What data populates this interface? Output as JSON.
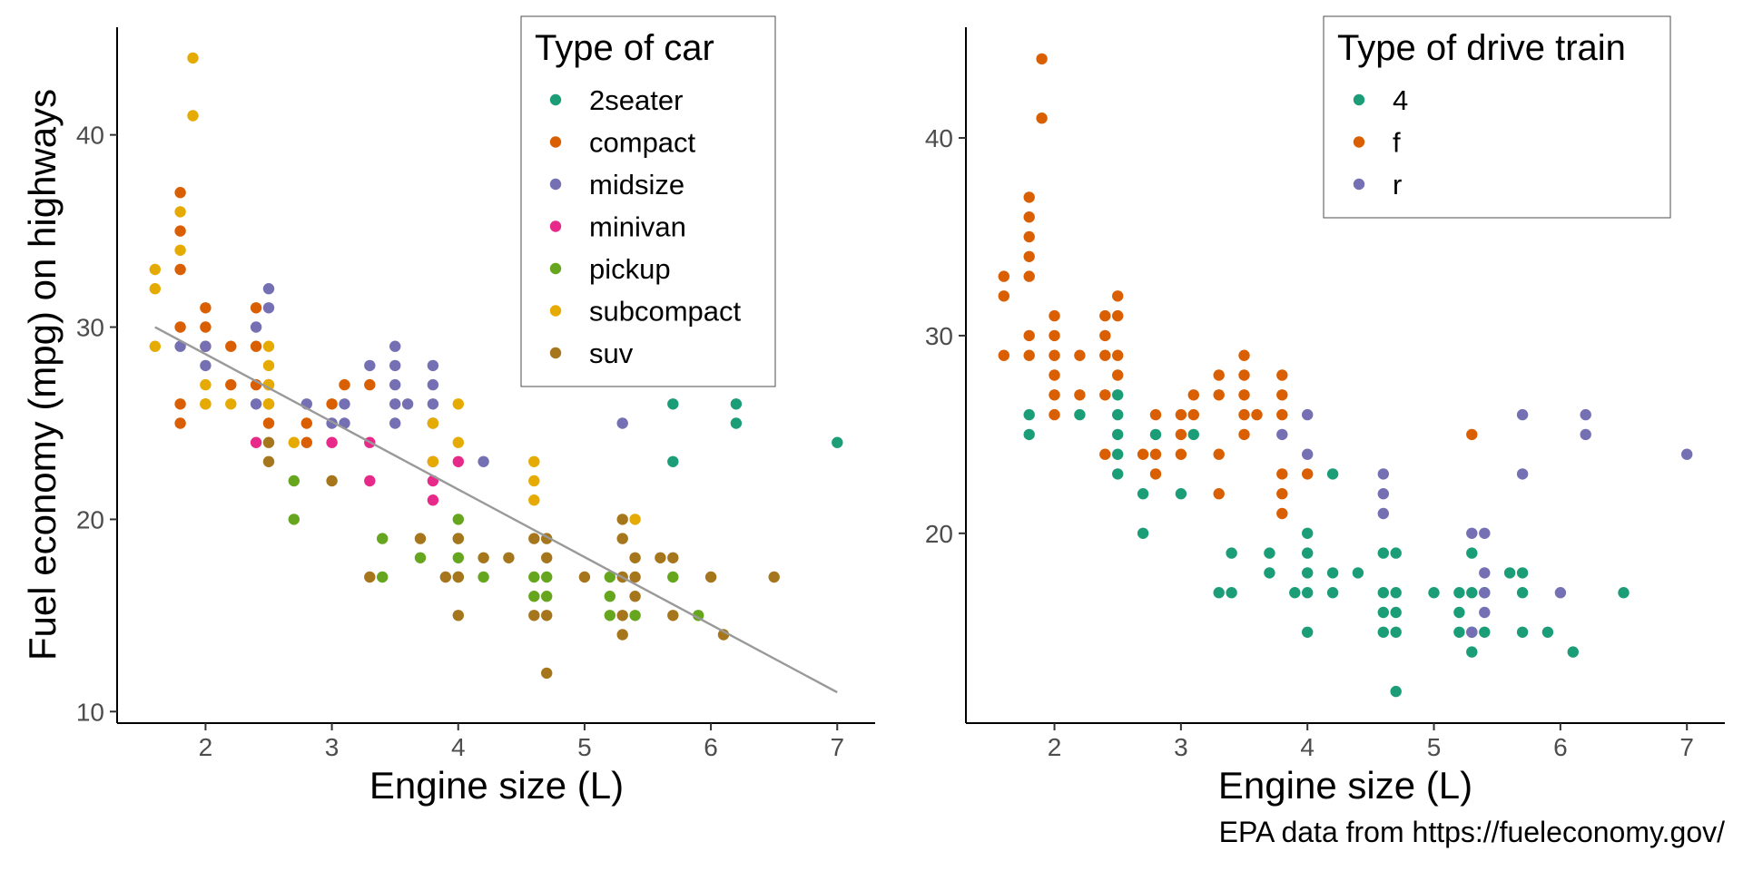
{
  "caption": "EPA data from https://fueleconomy.gov/",
  "colors": {
    "teal": "#1b9e77",
    "orange": "#d95f02",
    "purple": "#7570b3",
    "pink": "#e7298a",
    "green": "#66a61e",
    "yellow": "#e6ab02",
    "brown": "#a6761d",
    "trend": "#999999"
  },
  "chart_data": [
    {
      "type": "scatter",
      "xlabel": "Engine size (L)",
      "ylabel": "Fuel economy (mpg) on highways",
      "xlim": [
        1.3,
        7.3
      ],
      "ylim": [
        9.4,
        45.6
      ],
      "xticks": [
        2,
        3,
        4,
        5,
        6,
        7
      ],
      "yticks": [
        10,
        20,
        30,
        40
      ],
      "grid": false,
      "legend": {
        "title": "Type of car",
        "placement": "top-center",
        "entries": [
          "2seater",
          "compact",
          "midsize",
          "minivan",
          "pickup",
          "subcompact",
          "suv"
        ]
      },
      "trendline": {
        "x": [
          1.6,
          7.0
        ],
        "y": [
          30.0,
          11.0
        ]
      },
      "series": [
        {
          "name": "2seater",
          "color": "#1b9e77",
          "points": [
            [
              5.7,
              26
            ],
            [
              5.7,
              23
            ],
            [
              6.2,
              26
            ],
            [
              6.2,
              25
            ],
            [
              7.0,
              24
            ]
          ]
        },
        {
          "name": "compact",
          "color": "#d95f02",
          "points": [
            [
              1.8,
              37
            ],
            [
              1.8,
              35
            ],
            [
              1.8,
              33
            ],
            [
              1.8,
              30
            ],
            [
              1.8,
              26
            ],
            [
              1.8,
              25
            ],
            [
              2.0,
              31
            ],
            [
              2.0,
              30
            ],
            [
              2.0,
              29
            ],
            [
              2.0,
              26
            ],
            [
              2.2,
              29
            ],
            [
              2.2,
              27
            ],
            [
              2.4,
              31
            ],
            [
              2.4,
              29
            ],
            [
              2.4,
              27
            ],
            [
              2.5,
              27
            ],
            [
              2.5,
              26
            ],
            [
              2.5,
              25
            ],
            [
              2.8,
              25
            ],
            [
              2.8,
              24
            ],
            [
              3.0,
              26
            ],
            [
              3.1,
              27
            ],
            [
              3.3,
              27
            ]
          ]
        },
        {
          "name": "midsize",
          "color": "#7570b3",
          "points": [
            [
              1.8,
              29
            ],
            [
              2.0,
              29
            ],
            [
              2.0,
              28
            ],
            [
              2.4,
              30
            ],
            [
              2.4,
              26
            ],
            [
              2.5,
              32
            ],
            [
              2.5,
              31
            ],
            [
              2.8,
              26
            ],
            [
              3.0,
              25
            ],
            [
              3.1,
              26
            ],
            [
              3.1,
              25
            ],
            [
              3.3,
              28
            ],
            [
              3.5,
              29
            ],
            [
              3.5,
              28
            ],
            [
              3.5,
              27
            ],
            [
              3.5,
              26
            ],
            [
              3.5,
              25
            ],
            [
              3.6,
              26
            ],
            [
              3.8,
              28
            ],
            [
              3.8,
              27
            ],
            [
              3.8,
              26
            ],
            [
              3.8,
              25
            ],
            [
              4.2,
              23
            ],
            [
              5.3,
              25
            ]
          ]
        },
        {
          "name": "minivan",
          "color": "#e7298a",
          "points": [
            [
              2.4,
              24
            ],
            [
              3.0,
              24
            ],
            [
              3.3,
              24
            ],
            [
              3.3,
              22
            ],
            [
              3.8,
              23
            ],
            [
              3.8,
              22
            ],
            [
              3.8,
              21
            ],
            [
              4.0,
              23
            ]
          ]
        },
        {
          "name": "pickup",
          "color": "#66a61e",
          "points": [
            [
              2.7,
              22
            ],
            [
              2.7,
              20
            ],
            [
              3.4,
              19
            ],
            [
              3.4,
              17
            ],
            [
              3.7,
              18
            ],
            [
              4.0,
              20
            ],
            [
              4.0,
              19
            ],
            [
              4.0,
              18
            ],
            [
              4.0,
              17
            ],
            [
              4.2,
              17
            ],
            [
              4.6,
              17
            ],
            [
              4.6,
              16
            ],
            [
              4.7,
              17
            ],
            [
              4.7,
              16
            ],
            [
              5.2,
              17
            ],
            [
              5.2,
              16
            ],
            [
              5.2,
              15
            ],
            [
              5.4,
              15
            ],
            [
              5.7,
              17
            ],
            [
              5.9,
              15
            ]
          ]
        },
        {
          "name": "subcompact",
          "color": "#e6ab02",
          "points": [
            [
              1.6,
              33
            ],
            [
              1.6,
              32
            ],
            [
              1.6,
              29
            ],
            [
              1.8,
              36
            ],
            [
              1.8,
              34
            ],
            [
              1.9,
              44
            ],
            [
              1.9,
              41
            ],
            [
              2.0,
              27
            ],
            [
              2.0,
              26
            ],
            [
              2.2,
              26
            ],
            [
              2.5,
              29
            ],
            [
              2.5,
              28
            ],
            [
              2.5,
              27
            ],
            [
              2.5,
              26
            ],
            [
              2.7,
              24
            ],
            [
              3.8,
              25
            ],
            [
              3.8,
              23
            ],
            [
              4.0,
              26
            ],
            [
              4.0,
              24
            ],
            [
              4.6,
              23
            ],
            [
              4.6,
              22
            ],
            [
              4.6,
              21
            ],
            [
              5.4,
              20
            ]
          ]
        },
        {
          "name": "suv",
          "color": "#a6761d",
          "points": [
            [
              2.5,
              24
            ],
            [
              2.5,
              23
            ],
            [
              3.0,
              22
            ],
            [
              3.3,
              17
            ],
            [
              3.7,
              19
            ],
            [
              3.9,
              17
            ],
            [
              4.0,
              19
            ],
            [
              4.0,
              17
            ],
            [
              4.0,
              15
            ],
            [
              4.2,
              18
            ],
            [
              4.4,
              18
            ],
            [
              4.6,
              19
            ],
            [
              4.6,
              15
            ],
            [
              4.7,
              19
            ],
            [
              4.7,
              18
            ],
            [
              4.7,
              15
            ],
            [
              4.7,
              12
            ],
            [
              5.0,
              17
            ],
            [
              5.3,
              20
            ],
            [
              5.3,
              19
            ],
            [
              5.3,
              17
            ],
            [
              5.3,
              15
            ],
            [
              5.3,
              14
            ],
            [
              5.4,
              18
            ],
            [
              5.4,
              17
            ],
            [
              5.4,
              16
            ],
            [
              5.6,
              18
            ],
            [
              5.7,
              18
            ],
            [
              5.7,
              15
            ],
            [
              6.0,
              17
            ],
            [
              6.1,
              14
            ],
            [
              6.5,
              17
            ]
          ]
        }
      ]
    },
    {
      "type": "scatter",
      "xlabel": "Engine size (L)",
      "ylabel": "",
      "xlim": [
        1.3,
        7.3
      ],
      "ylim": [
        10.4,
        45.6
      ],
      "xticks": [
        2,
        3,
        4,
        5,
        6,
        7
      ],
      "yticks": [
        20,
        30,
        40
      ],
      "grid": false,
      "legend": {
        "title": "Type of drive train",
        "placement": "top-right",
        "entries": [
          "4",
          "f",
          "r"
        ]
      },
      "series": [
        {
          "name": "4",
          "color": "#1b9e77",
          "points": [
            [
              1.8,
              26
            ],
            [
              1.8,
              25
            ],
            [
              2.2,
              26
            ],
            [
              2.5,
              27
            ],
            [
              2.5,
              26
            ],
            [
              2.5,
              25
            ],
            [
              2.5,
              24
            ],
            [
              2.5,
              23
            ],
            [
              2.7,
              22
            ],
            [
              2.7,
              20
            ],
            [
              2.8,
              25
            ],
            [
              3.0,
              22
            ],
            [
              3.1,
              25
            ],
            [
              3.3,
              17
            ],
            [
              3.4,
              19
            ],
            [
              3.4,
              17
            ],
            [
              3.7,
              19
            ],
            [
              3.7,
              18
            ],
            [
              3.9,
              17
            ],
            [
              4.0,
              20
            ],
            [
              4.0,
              19
            ],
            [
              4.0,
              18
            ],
            [
              4.0,
              17
            ],
            [
              4.0,
              15
            ],
            [
              4.2,
              23
            ],
            [
              4.2,
              18
            ],
            [
              4.2,
              17
            ],
            [
              4.4,
              18
            ],
            [
              4.6,
              19
            ],
            [
              4.6,
              17
            ],
            [
              4.6,
              16
            ],
            [
              4.6,
              15
            ],
            [
              4.7,
              19
            ],
            [
              4.7,
              17
            ],
            [
              4.7,
              16
            ],
            [
              4.7,
              15
            ],
            [
              4.7,
              12
            ],
            [
              5.0,
              17
            ],
            [
              5.2,
              17
            ],
            [
              5.2,
              16
            ],
            [
              5.2,
              15
            ],
            [
              5.3,
              19
            ],
            [
              5.3,
              17
            ],
            [
              5.3,
              15
            ],
            [
              5.3,
              14
            ],
            [
              5.4,
              17
            ],
            [
              5.4,
              15
            ],
            [
              5.6,
              18
            ],
            [
              5.7,
              18
            ],
            [
              5.7,
              17
            ],
            [
              5.7,
              15
            ],
            [
              5.9,
              15
            ],
            [
              6.1,
              14
            ],
            [
              6.5,
              17
            ]
          ]
        },
        {
          "name": "f",
          "color": "#d95f02",
          "points": [
            [
              1.6,
              33
            ],
            [
              1.6,
              32
            ],
            [
              1.6,
              29
            ],
            [
              1.8,
              37
            ],
            [
              1.8,
              36
            ],
            [
              1.8,
              35
            ],
            [
              1.8,
              34
            ],
            [
              1.8,
              33
            ],
            [
              1.8,
              30
            ],
            [
              1.8,
              29
            ],
            [
              1.9,
              44
            ],
            [
              1.9,
              41
            ],
            [
              2.0,
              31
            ],
            [
              2.0,
              30
            ],
            [
              2.0,
              29
            ],
            [
              2.0,
              28
            ],
            [
              2.0,
              27
            ],
            [
              2.0,
              26
            ],
            [
              2.2,
              29
            ],
            [
              2.2,
              27
            ],
            [
              2.4,
              31
            ],
            [
              2.4,
              30
            ],
            [
              2.4,
              29
            ],
            [
              2.4,
              27
            ],
            [
              2.4,
              24
            ],
            [
              2.5,
              32
            ],
            [
              2.5,
              31
            ],
            [
              2.5,
              29
            ],
            [
              2.5,
              28
            ],
            [
              2.7,
              24
            ],
            [
              2.8,
              26
            ],
            [
              2.8,
              24
            ],
            [
              2.8,
              23
            ],
            [
              3.0,
              26
            ],
            [
              3.0,
              25
            ],
            [
              3.0,
              24
            ],
            [
              3.1,
              26
            ],
            [
              3.1,
              27
            ],
            [
              3.3,
              28
            ],
            [
              3.3,
              27
            ],
            [
              3.3,
              24
            ],
            [
              3.3,
              22
            ],
            [
              3.5,
              29
            ],
            [
              3.5,
              28
            ],
            [
              3.5,
              27
            ],
            [
              3.5,
              26
            ],
            [
              3.5,
              25
            ],
            [
              3.6,
              26
            ],
            [
              3.8,
              28
            ],
            [
              3.8,
              27
            ],
            [
              3.8,
              26
            ],
            [
              3.8,
              23
            ],
            [
              3.8,
              22
            ],
            [
              3.8,
              21
            ],
            [
              4.0,
              23
            ],
            [
              5.3,
              25
            ]
          ]
        },
        {
          "name": "r",
          "color": "#7570b3",
          "points": [
            [
              3.8,
              25
            ],
            [
              4.0,
              26
            ],
            [
              4.0,
              24
            ],
            [
              4.6,
              23
            ],
            [
              4.6,
              22
            ],
            [
              4.6,
              21
            ],
            [
              5.3,
              20
            ],
            [
              5.3,
              15
            ],
            [
              5.4,
              20
            ],
            [
              5.4,
              18
            ],
            [
              5.4,
              17
            ],
            [
              5.4,
              16
            ],
            [
              5.7,
              26
            ],
            [
              5.7,
              23
            ],
            [
              6.0,
              17
            ],
            [
              6.2,
              26
            ],
            [
              6.2,
              25
            ],
            [
              7.0,
              24
            ]
          ]
        }
      ]
    }
  ]
}
